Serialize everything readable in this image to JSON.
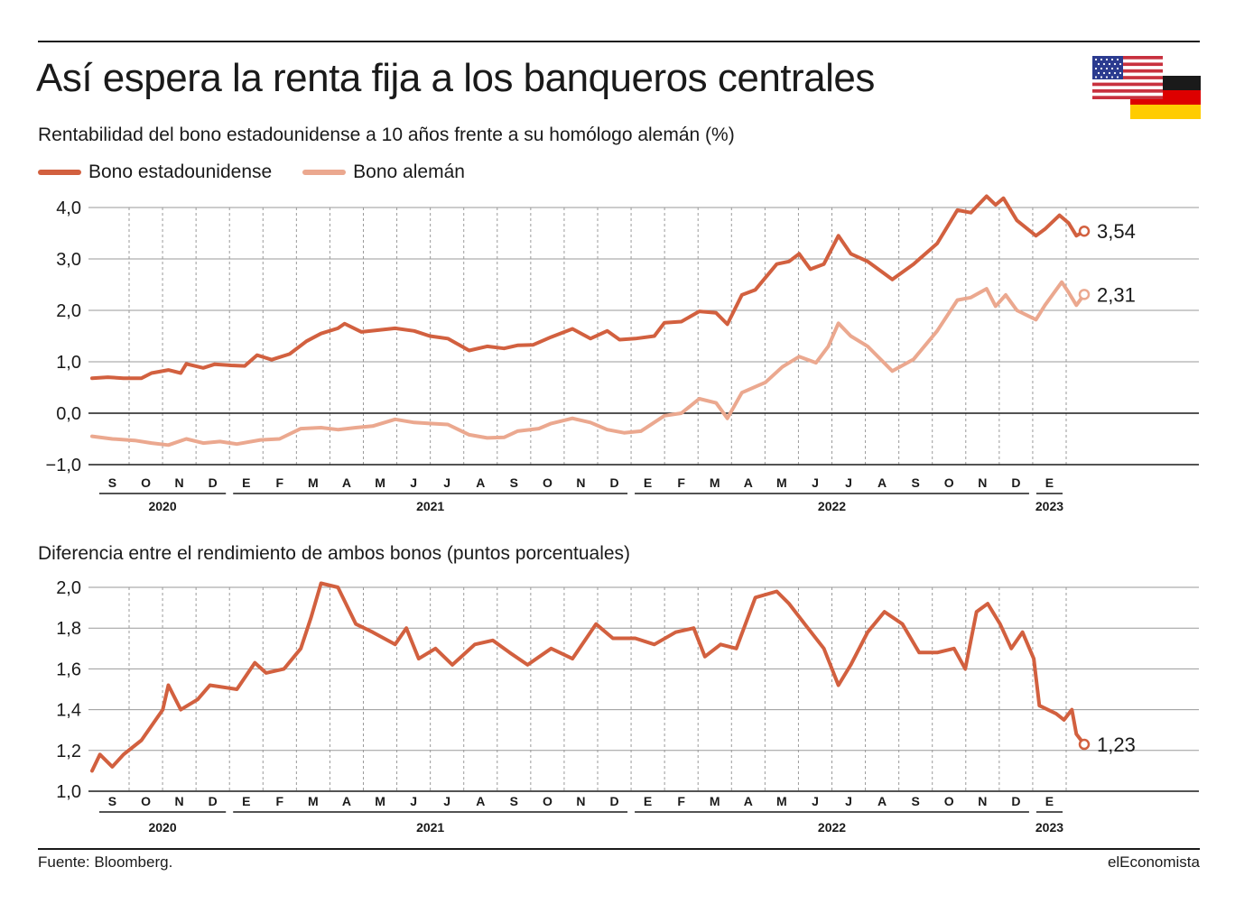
{
  "title": "Así espera la renta fija a los banqueros centrales",
  "legend": [
    {
      "name": "Bono estadounidense",
      "color": "#d2603f"
    },
    {
      "name": "Bono alemán",
      "color": "#eba88f"
    }
  ],
  "flags": [
    "us-flag-icon",
    "germany-flag-icon"
  ],
  "source": "Fuente: Bloomberg.",
  "brand": "elEconomista",
  "months": [
    "S",
    "O",
    "N",
    "D",
    "E",
    "F",
    "M",
    "A",
    "M",
    "J",
    "J",
    "A",
    "S",
    "O",
    "N",
    "D",
    "E",
    "F",
    "M",
    "A",
    "M",
    "J",
    "J",
    "A",
    "S",
    "O",
    "N",
    "D",
    "E"
  ],
  "years": [
    {
      "label": "2020",
      "first": 0,
      "last": 3
    },
    {
      "label": "2021",
      "first": 4,
      "last": 15
    },
    {
      "label": "2022",
      "first": 16,
      "last": 27
    },
    {
      "label": "2023",
      "first": 28,
      "last": 28
    }
  ],
  "chart_data": [
    {
      "type": "line",
      "title": "Rentabilidad del bono estadounidense a 10 años frente a su homólogo alemán (%)",
      "ylim": [
        -1.0,
        4.0
      ],
      "yticks": [
        "4,0",
        "3,0",
        "2,0",
        "1,0",
        "0,0",
        "−1,0"
      ],
      "grid": true,
      "x_start": "2020-08-18",
      "x_end": "2023-01-19",
      "series": [
        {
          "name": "Bono estadounidense",
          "color": "#d2603f",
          "end_label": "3,54",
          "points": [
            [
              "2020-08-18",
              0.68
            ],
            [
              "2020-09-01",
              0.7
            ],
            [
              "2020-09-15",
              0.68
            ],
            [
              "2020-10-01",
              0.68
            ],
            [
              "2020-10-10",
              0.78
            ],
            [
              "2020-10-25",
              0.84
            ],
            [
              "2020-11-05",
              0.78
            ],
            [
              "2020-11-10",
              0.96
            ],
            [
              "2020-11-25",
              0.88
            ],
            [
              "2020-12-05",
              0.95
            ],
            [
              "2020-12-20",
              0.93
            ],
            [
              "2021-01-01",
              0.92
            ],
            [
              "2021-01-12",
              1.13
            ],
            [
              "2021-01-25",
              1.04
            ],
            [
              "2021-02-10",
              1.15
            ],
            [
              "2021-02-25",
              1.4
            ],
            [
              "2021-03-10",
              1.55
            ],
            [
              "2021-03-25",
              1.65
            ],
            [
              "2021-03-31",
              1.74
            ],
            [
              "2021-04-15",
              1.58
            ],
            [
              "2021-05-01",
              1.62
            ],
            [
              "2021-05-15",
              1.65
            ],
            [
              "2021-06-01",
              1.6
            ],
            [
              "2021-06-15",
              1.5
            ],
            [
              "2021-07-01",
              1.45
            ],
            [
              "2021-07-20",
              1.22
            ],
            [
              "2021-08-05",
              1.3
            ],
            [
              "2021-08-20",
              1.26
            ],
            [
              "2021-09-01",
              1.32
            ],
            [
              "2021-09-15",
              1.33
            ],
            [
              "2021-10-01",
              1.48
            ],
            [
              "2021-10-20",
              1.64
            ],
            [
              "2021-11-05",
              1.45
            ],
            [
              "2021-11-20",
              1.6
            ],
            [
              "2021-12-01",
              1.43
            ],
            [
              "2021-12-15",
              1.45
            ],
            [
              "2022-01-01",
              1.5
            ],
            [
              "2022-01-10",
              1.76
            ],
            [
              "2022-01-25",
              1.78
            ],
            [
              "2022-02-10",
              1.98
            ],
            [
              "2022-02-25",
              1.95
            ],
            [
              "2022-03-07",
              1.73
            ],
            [
              "2022-03-20",
              2.3
            ],
            [
              "2022-04-01",
              2.4
            ],
            [
              "2022-04-20",
              2.9
            ],
            [
              "2022-05-01",
              2.95
            ],
            [
              "2022-05-10",
              3.1
            ],
            [
              "2022-05-20",
              2.8
            ],
            [
              "2022-06-01",
              2.9
            ],
            [
              "2022-06-14",
              3.45
            ],
            [
              "2022-06-25",
              3.1
            ],
            [
              "2022-07-10",
              2.95
            ],
            [
              "2022-08-01",
              2.6
            ],
            [
              "2022-08-20",
              2.9
            ],
            [
              "2022-09-10",
              3.3
            ],
            [
              "2022-09-28",
              3.95
            ],
            [
              "2022-10-10",
              3.9
            ],
            [
              "2022-10-24",
              4.22
            ],
            [
              "2022-11-01",
              4.05
            ],
            [
              "2022-11-08",
              4.18
            ],
            [
              "2022-11-20",
              3.75
            ],
            [
              "2022-12-07",
              3.45
            ],
            [
              "2022-12-15",
              3.58
            ],
            [
              "2022-12-28",
              3.85
            ],
            [
              "2023-01-05",
              3.7
            ],
            [
              "2023-01-12",
              3.45
            ],
            [
              "2023-01-19",
              3.54
            ]
          ]
        },
        {
          "name": "Bono alemán",
          "color": "#eba88f",
          "end_label": "2,31",
          "points": [
            [
              "2020-08-18",
              -0.45
            ],
            [
              "2020-09-05",
              -0.5
            ],
            [
              "2020-09-25",
              -0.53
            ],
            [
              "2020-10-10",
              -0.58
            ],
            [
              "2020-10-25",
              -0.62
            ],
            [
              "2020-11-10",
              -0.5
            ],
            [
              "2020-11-25",
              -0.58
            ],
            [
              "2020-12-10",
              -0.55
            ],
            [
              "2020-12-25",
              -0.6
            ],
            [
              "2021-01-15",
              -0.52
            ],
            [
              "2021-02-01",
              -0.5
            ],
            [
              "2021-02-20",
              -0.3
            ],
            [
              "2021-03-10",
              -0.28
            ],
            [
              "2021-03-25",
              -0.32
            ],
            [
              "2021-04-10",
              -0.28
            ],
            [
              "2021-04-25",
              -0.25
            ],
            [
              "2021-05-15",
              -0.12
            ],
            [
              "2021-06-01",
              -0.18
            ],
            [
              "2021-06-15",
              -0.2
            ],
            [
              "2021-07-01",
              -0.22
            ],
            [
              "2021-07-20",
              -0.42
            ],
            [
              "2021-08-05",
              -0.48
            ],
            [
              "2021-08-20",
              -0.47
            ],
            [
              "2021-09-01",
              -0.35
            ],
            [
              "2021-09-20",
              -0.3
            ],
            [
              "2021-10-01",
              -0.2
            ],
            [
              "2021-10-20",
              -0.1
            ],
            [
              "2021-11-05",
              -0.18
            ],
            [
              "2021-11-20",
              -0.32
            ],
            [
              "2021-12-05",
              -0.38
            ],
            [
              "2021-12-20",
              -0.35
            ],
            [
              "2022-01-10",
              -0.05
            ],
            [
              "2022-01-25",
              0.0
            ],
            [
              "2022-02-10",
              0.28
            ],
            [
              "2022-02-25",
              0.2
            ],
            [
              "2022-03-07",
              -0.1
            ],
            [
              "2022-03-20",
              0.4
            ],
            [
              "2022-04-10",
              0.6
            ],
            [
              "2022-04-25",
              0.9
            ],
            [
              "2022-05-10",
              1.1
            ],
            [
              "2022-05-25",
              0.98
            ],
            [
              "2022-06-05",
              1.3
            ],
            [
              "2022-06-14",
              1.75
            ],
            [
              "2022-06-25",
              1.5
            ],
            [
              "2022-07-10",
              1.3
            ],
            [
              "2022-08-01",
              0.82
            ],
            [
              "2022-08-20",
              1.05
            ],
            [
              "2022-09-10",
              1.6
            ],
            [
              "2022-09-28",
              2.2
            ],
            [
              "2022-10-10",
              2.25
            ],
            [
              "2022-10-24",
              2.42
            ],
            [
              "2022-11-01",
              2.08
            ],
            [
              "2022-11-10",
              2.3
            ],
            [
              "2022-11-20",
              2.0
            ],
            [
              "2022-12-07",
              1.82
            ],
            [
              "2022-12-15",
              2.1
            ],
            [
              "2022-12-30",
              2.55
            ],
            [
              "2023-01-05",
              2.35
            ],
            [
              "2023-01-12",
              2.1
            ],
            [
              "2023-01-19",
              2.31
            ]
          ]
        }
      ]
    },
    {
      "type": "line",
      "title": "Diferencia entre el rendimiento de ambos bonos (puntos porcentuales)",
      "ylim": [
        1.0,
        2.0
      ],
      "yticks": [
        "2,0",
        "1,8",
        "1,6",
        "1,4",
        "1,2",
        "1,0"
      ],
      "grid": true,
      "x_start": "2020-08-18",
      "x_end": "2023-01-19",
      "series": [
        {
          "name": "",
          "color": "#d2603f",
          "end_label": "1,23",
          "points": [
            [
              "2020-08-18",
              1.1
            ],
            [
              "2020-08-25",
              1.18
            ],
            [
              "2020-09-05",
              1.12
            ],
            [
              "2020-09-15",
              1.18
            ],
            [
              "2020-10-01",
              1.25
            ],
            [
              "2020-10-20",
              1.4
            ],
            [
              "2020-10-25",
              1.52
            ],
            [
              "2020-11-05",
              1.4
            ],
            [
              "2020-11-20",
              1.45
            ],
            [
              "2020-12-01",
              1.52
            ],
            [
              "2020-12-25",
              1.5
            ],
            [
              "2021-01-10",
              1.63
            ],
            [
              "2021-01-20",
              1.58
            ],
            [
              "2021-02-05",
              1.6
            ],
            [
              "2021-02-20",
              1.7
            ],
            [
              "2021-03-01",
              1.85
            ],
            [
              "2021-03-10",
              2.02
            ],
            [
              "2021-03-25",
              2.0
            ],
            [
              "2021-04-10",
              1.82
            ],
            [
              "2021-04-25",
              1.78
            ],
            [
              "2021-05-15",
              1.72
            ],
            [
              "2021-05-25",
              1.8
            ],
            [
              "2021-06-05",
              1.65
            ],
            [
              "2021-06-20",
              1.7
            ],
            [
              "2021-07-05",
              1.62
            ],
            [
              "2021-07-25",
              1.72
            ],
            [
              "2021-08-10",
              1.74
            ],
            [
              "2021-08-25",
              1.68
            ],
            [
              "2021-09-10",
              1.62
            ],
            [
              "2021-10-01",
              1.7
            ],
            [
              "2021-10-20",
              1.65
            ],
            [
              "2021-11-10",
              1.82
            ],
            [
              "2021-11-25",
              1.75
            ],
            [
              "2021-12-15",
              1.75
            ],
            [
              "2022-01-01",
              1.72
            ],
            [
              "2022-01-20",
              1.78
            ],
            [
              "2022-02-05",
              1.8
            ],
            [
              "2022-02-15",
              1.66
            ],
            [
              "2022-03-01",
              1.72
            ],
            [
              "2022-03-15",
              1.7
            ],
            [
              "2022-04-01",
              1.95
            ],
            [
              "2022-04-20",
              1.98
            ],
            [
              "2022-05-01",
              1.92
            ],
            [
              "2022-05-15",
              1.82
            ],
            [
              "2022-06-01",
              1.7
            ],
            [
              "2022-06-14",
              1.52
            ],
            [
              "2022-06-25",
              1.62
            ],
            [
              "2022-07-10",
              1.78
            ],
            [
              "2022-07-25",
              1.88
            ],
            [
              "2022-08-10",
              1.82
            ],
            [
              "2022-08-25",
              1.68
            ],
            [
              "2022-09-10",
              1.68
            ],
            [
              "2022-09-25",
              1.7
            ],
            [
              "2022-10-05",
              1.6
            ],
            [
              "2022-10-15",
              1.88
            ],
            [
              "2022-10-25",
              1.92
            ],
            [
              "2022-11-05",
              1.82
            ],
            [
              "2022-11-15",
              1.7
            ],
            [
              "2022-11-25",
              1.78
            ],
            [
              "2022-12-05",
              1.65
            ],
            [
              "2022-12-10",
              1.42
            ],
            [
              "2022-12-25",
              1.38
            ],
            [
              "2023-01-01",
              1.35
            ],
            [
              "2023-01-08",
              1.4
            ],
            [
              "2023-01-12",
              1.28
            ],
            [
              "2023-01-19",
              1.23
            ]
          ]
        }
      ]
    }
  ]
}
